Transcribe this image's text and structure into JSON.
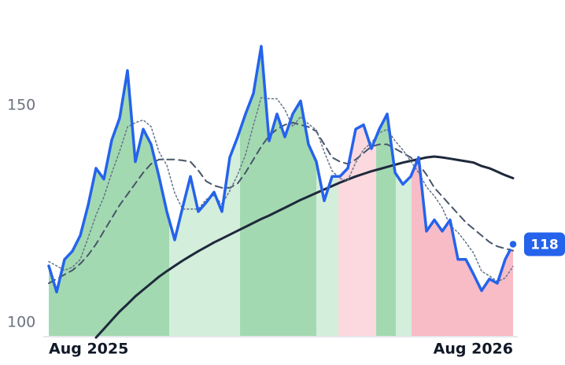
{
  "chart_data": {
    "type": "line",
    "x": [
      0,
      1,
      2,
      3,
      4,
      5,
      6,
      7,
      8,
      9,
      10,
      11,
      12,
      13,
      14,
      15,
      16,
      17,
      18,
      19,
      20,
      21,
      22,
      23,
      24,
      25,
      26,
      27,
      28,
      29,
      30,
      31,
      32,
      33,
      34,
      35,
      36,
      37,
      38,
      39,
      40,
      41,
      42,
      43,
      44,
      45,
      46,
      47,
      48,
      49,
      50,
      51,
      52,
      53,
      54,
      55,
      56,
      57,
      58,
      59
    ],
    "xlim": [
      0,
      59
    ],
    "xticks": [
      {
        "value": 0,
        "label": "Aug 2025"
      },
      {
        "value": 59,
        "label": "Aug 2026"
      }
    ],
    "ylim": [
      96.7,
      167
    ],
    "yticks": [
      100,
      150
    ],
    "bands": [
      {
        "start": 0,
        "end": 15.3,
        "color": "#a3d9b1"
      },
      {
        "start": 15.3,
        "end": 24.3,
        "color": "#d3eedb"
      },
      {
        "start": 24.3,
        "end": 34,
        "color": "#a3d9b1"
      },
      {
        "start": 34,
        "end": 36.8,
        "color": "#d3eedb"
      },
      {
        "start": 36.8,
        "end": 41.6,
        "color": "#fcd9df"
      },
      {
        "start": 41.6,
        "end": 44.1,
        "color": "#a3d9b1"
      },
      {
        "start": 44.1,
        "end": 46.1,
        "color": "#d3eedb"
      },
      {
        "start": 46.1,
        "end": 59,
        "color": "#f8bcc7"
      }
    ],
    "series": [
      {
        "color": "#1e293b",
        "style": "solid",
        "width": 3,
        "values": [
          null,
          null,
          null,
          null,
          null,
          null,
          96.5,
          98.5,
          100.5,
          102.5,
          104.2,
          106,
          107.5,
          109,
          110.5,
          111.8,
          113,
          114.2,
          115.3,
          116.4,
          117.4,
          118.4,
          119.3,
          120.2,
          121.1,
          122,
          122.9,
          123.8,
          124.6,
          125.5,
          126.4,
          127.3,
          128.2,
          129,
          129.8,
          130.6,
          131.4,
          132.2,
          132.9,
          133.6,
          134.2,
          134.8,
          135.3,
          135.8,
          136.3,
          136.8,
          137.2,
          137.6,
          138,
          138.2,
          138,
          137.7,
          137.4,
          137.1,
          136.8,
          136,
          135.5,
          134.7,
          133.9,
          133.2
        ]
      },
      {
        "color": "#475569",
        "style": "dashed",
        "width": 2,
        "values": [
          109,
          110,
          111,
          112,
          113.5,
          115.5,
          118,
          121,
          124,
          127,
          129.5,
          132,
          134.5,
          136.5,
          137.5,
          137.5,
          137.5,
          137.3,
          137,
          135,
          132.5,
          131.5,
          131,
          131,
          132,
          134.5,
          137.5,
          140.5,
          143,
          144.5,
          145.5,
          146,
          145.5,
          145,
          144,
          141,
          138,
          137,
          136.5,
          137.5,
          139,
          140.5,
          141,
          141,
          140,
          139,
          138,
          136.5,
          134,
          131,
          129,
          127,
          125,
          123,
          121.5,
          120,
          118.5,
          117.5,
          117,
          116.5
        ]
      },
      {
        "color": "#64748b",
        "style": "dotted",
        "width": 1.5,
        "values": [
          114,
          113,
          112,
          112.7,
          114.5,
          119.5,
          124.7,
          128.9,
          134.4,
          139.4,
          145,
          146,
          146.6,
          145.1,
          139.3,
          136.2,
          129.8,
          126.1,
          126.1,
          126.1,
          128.3,
          129.2,
          127.2,
          130.3,
          134,
          138.6,
          145.4,
          151.8,
          151.5,
          151.5,
          149,
          145.1,
          147.4,
          145.7,
          144.3,
          139.3,
          134.9,
          133.1,
          132.7,
          136.8,
          139.8,
          141.4,
          143.6,
          144.5,
          141.8,
          139.7,
          137.1,
          134.5,
          131.2,
          129.1,
          126.4,
          122.3,
          120.7,
          118.4,
          115.9,
          111.8,
          110.7,
          109.4,
          110.2,
          112.9
        ]
      },
      {
        "color": "#2563eb",
        "style": "solid",
        "width": 3.5,
        "fill_under": true,
        "values": [
          113,
          107,
          114.5,
          116.4,
          120,
          127,
          135.5,
          133,
          142,
          147,
          158,
          137,
          144.5,
          141,
          133.6,
          125.5,
          119,
          126.4,
          133.6,
          125.5,
          127.6,
          130,
          125.5,
          138,
          142.7,
          148,
          152.7,
          163.6,
          141.8,
          148,
          142.7,
          148,
          151,
          141,
          137,
          128,
          133.6,
          133.6,
          135.5,
          144.5,
          145.5,
          140,
          144.5,
          148,
          134.5,
          131.8,
          133.6,
          138,
          121,
          123.6,
          121,
          123.6,
          114.5,
          114.5,
          111,
          107.3,
          110,
          109,
          114.5,
          118
        ]
      }
    ],
    "annotations": [
      {
        "x": 59,
        "y": 118,
        "label": "118",
        "color": "#2563eb"
      }
    ]
  }
}
